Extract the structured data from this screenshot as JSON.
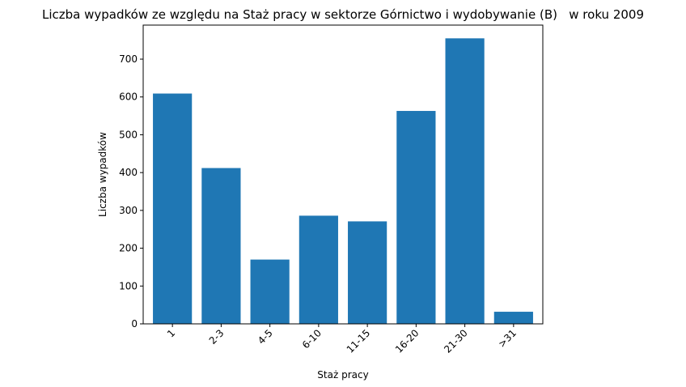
{
  "chart_data": {
    "type": "bar",
    "title": "Liczba wypadków ze względu na Staż pracy w sektorze Górnictwo i wydobywanie (B)   w roku 2009",
    "xlabel": "Staż pracy",
    "ylabel": "Liczba wypadków",
    "categories": [
      "1",
      "2-3",
      "4-5",
      "6-10",
      "11-15",
      "16-20",
      "21-30",
      ">31"
    ],
    "values": [
      609,
      412,
      170,
      286,
      271,
      563,
      755,
      32
    ],
    "ylim": [
      0,
      790
    ],
    "yticks": [
      0,
      100,
      200,
      300,
      400,
      500,
      600,
      700
    ],
    "grid": false,
    "bar_color": "#1f77b4"
  }
}
